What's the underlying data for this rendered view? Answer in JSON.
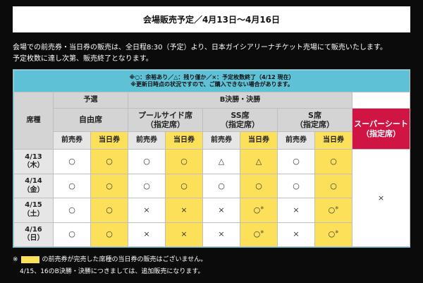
{
  "title": "会場販売予定／4月13日〜4月16日",
  "intro": {
    "line1": "会場での前売券・当日券の販売は、全日程8:30（予定）より、日本ガイシアリーナチケット売場にて販売いたします。",
    "line2": "予定枚数に達し次第、販売終了となります。"
  },
  "legend": {
    "line1": "※○：余裕あり／△：残り僅か／×：予定枚数終了（4/12 現在）",
    "line2": "※更新日時点の状況ですので、ご購入できない場合があります。"
  },
  "headers": {
    "seat": "席種",
    "qualifying": "予選",
    "finals": "B決勝・決勝",
    "free_seat": "自由席",
    "poolside_1": "プールサイド席",
    "poolside_2": "（指定席）",
    "ss_1": "SS席",
    "ss_2": "（指定席）",
    "s_1": "S席",
    "s_2": "（指定席）",
    "super_1": "スーパーシート",
    "super_2": "（指定席）",
    "presale": "前売券",
    "sameday": "当日券"
  },
  "days": [
    {
      "date": "4/13",
      "dow": "（木）",
      "cells": [
        "○",
        "○",
        "○",
        "○",
        "△",
        "△",
        "○",
        "○"
      ],
      "notes": [
        "",
        "",
        "",
        "",
        "",
        "",
        "",
        ""
      ]
    },
    {
      "date": "4/14",
      "dow": "（金）",
      "cells": [
        "○",
        "○",
        "○",
        "○",
        "○",
        "○",
        "○",
        "○"
      ],
      "notes": [
        "",
        "",
        "",
        "",
        "",
        "",
        "",
        ""
      ]
    },
    {
      "date": "4/15",
      "dow": "（土）",
      "cells": [
        "○",
        "○",
        "×",
        "×",
        "×",
        "○",
        "×",
        "○"
      ],
      "notes": [
        "",
        "",
        "",
        "",
        "",
        "※",
        "",
        "※"
      ]
    },
    {
      "date": "4/16",
      "dow": "（日）",
      "cells": [
        "○",
        "○",
        "×",
        "×",
        "×",
        "○",
        "×",
        "○"
      ],
      "notes": [
        "",
        "",
        "",
        "",
        "",
        "※",
        "",
        "※"
      ]
    }
  ],
  "super_seat_mark": "×",
  "footnote": {
    "line1_prefix": "※",
    "line1_text": "の前売券が完売した席種の当日券の販売はございません。",
    "line2": "4/15、16のB決勝・決勝につきましては、追加販売になります。"
  },
  "colors": {
    "background": "#0b0b0b",
    "legend_band": "#5fc1d6",
    "sameday_highlight": "#fde05a",
    "super_seat": "#d01545"
  }
}
